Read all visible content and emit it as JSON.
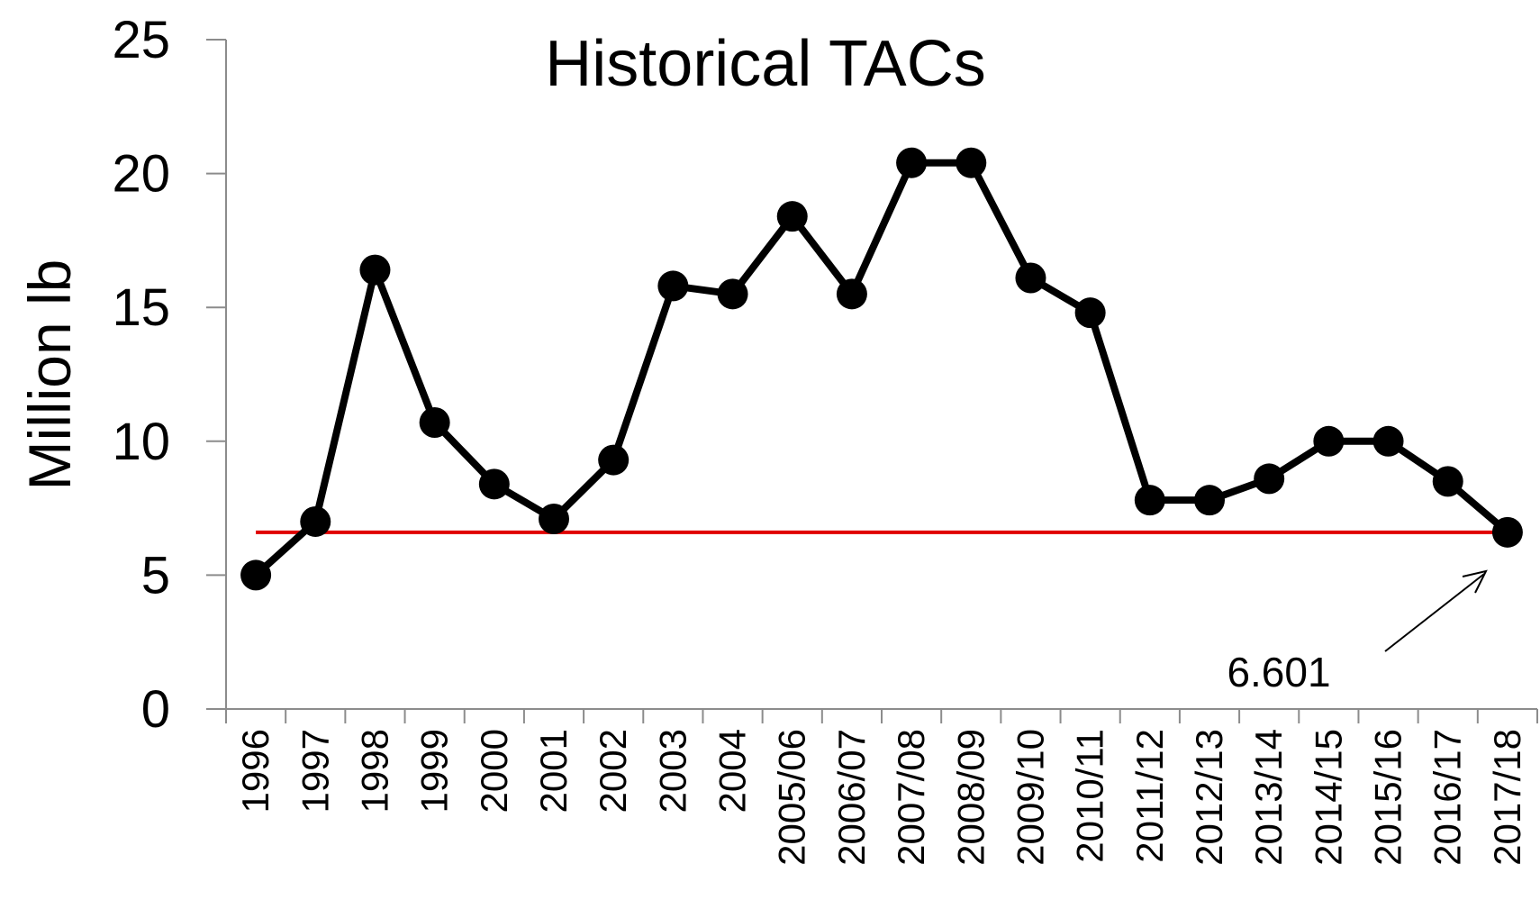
{
  "chart_data": {
    "type": "line",
    "title": "Historical TACs",
    "y_label": "Million lb",
    "categories": [
      "1996",
      "1997",
      "1998",
      "1999",
      "2000",
      "2001",
      "2002",
      "2003",
      "2004",
      "2005/06",
      "2006/07",
      "2007/08",
      "2008/09",
      "2009/10",
      "2010/11",
      "2011/12",
      "2012/13",
      "2013/14",
      "2014/15",
      "2015/16",
      "2016/17",
      "2017/18"
    ],
    "series": [
      {
        "name": "TAC",
        "color": "#000000",
        "values": [
          5.0,
          7.0,
          16.4,
          10.7,
          8.4,
          7.1,
          9.3,
          15.8,
          15.5,
          18.4,
          15.5,
          20.4,
          20.4,
          16.1,
          14.8,
          7.8,
          7.8,
          8.6,
          10.0,
          10.0,
          8.5,
          6.601
        ]
      }
    ],
    "reference_line": {
      "value": 6.601,
      "color": "#e00000"
    },
    "annotation": "6.601",
    "ylim": [
      0,
      25
    ],
    "yticks": [
      0,
      5,
      10,
      15,
      20,
      25
    ],
    "grid": false
  }
}
